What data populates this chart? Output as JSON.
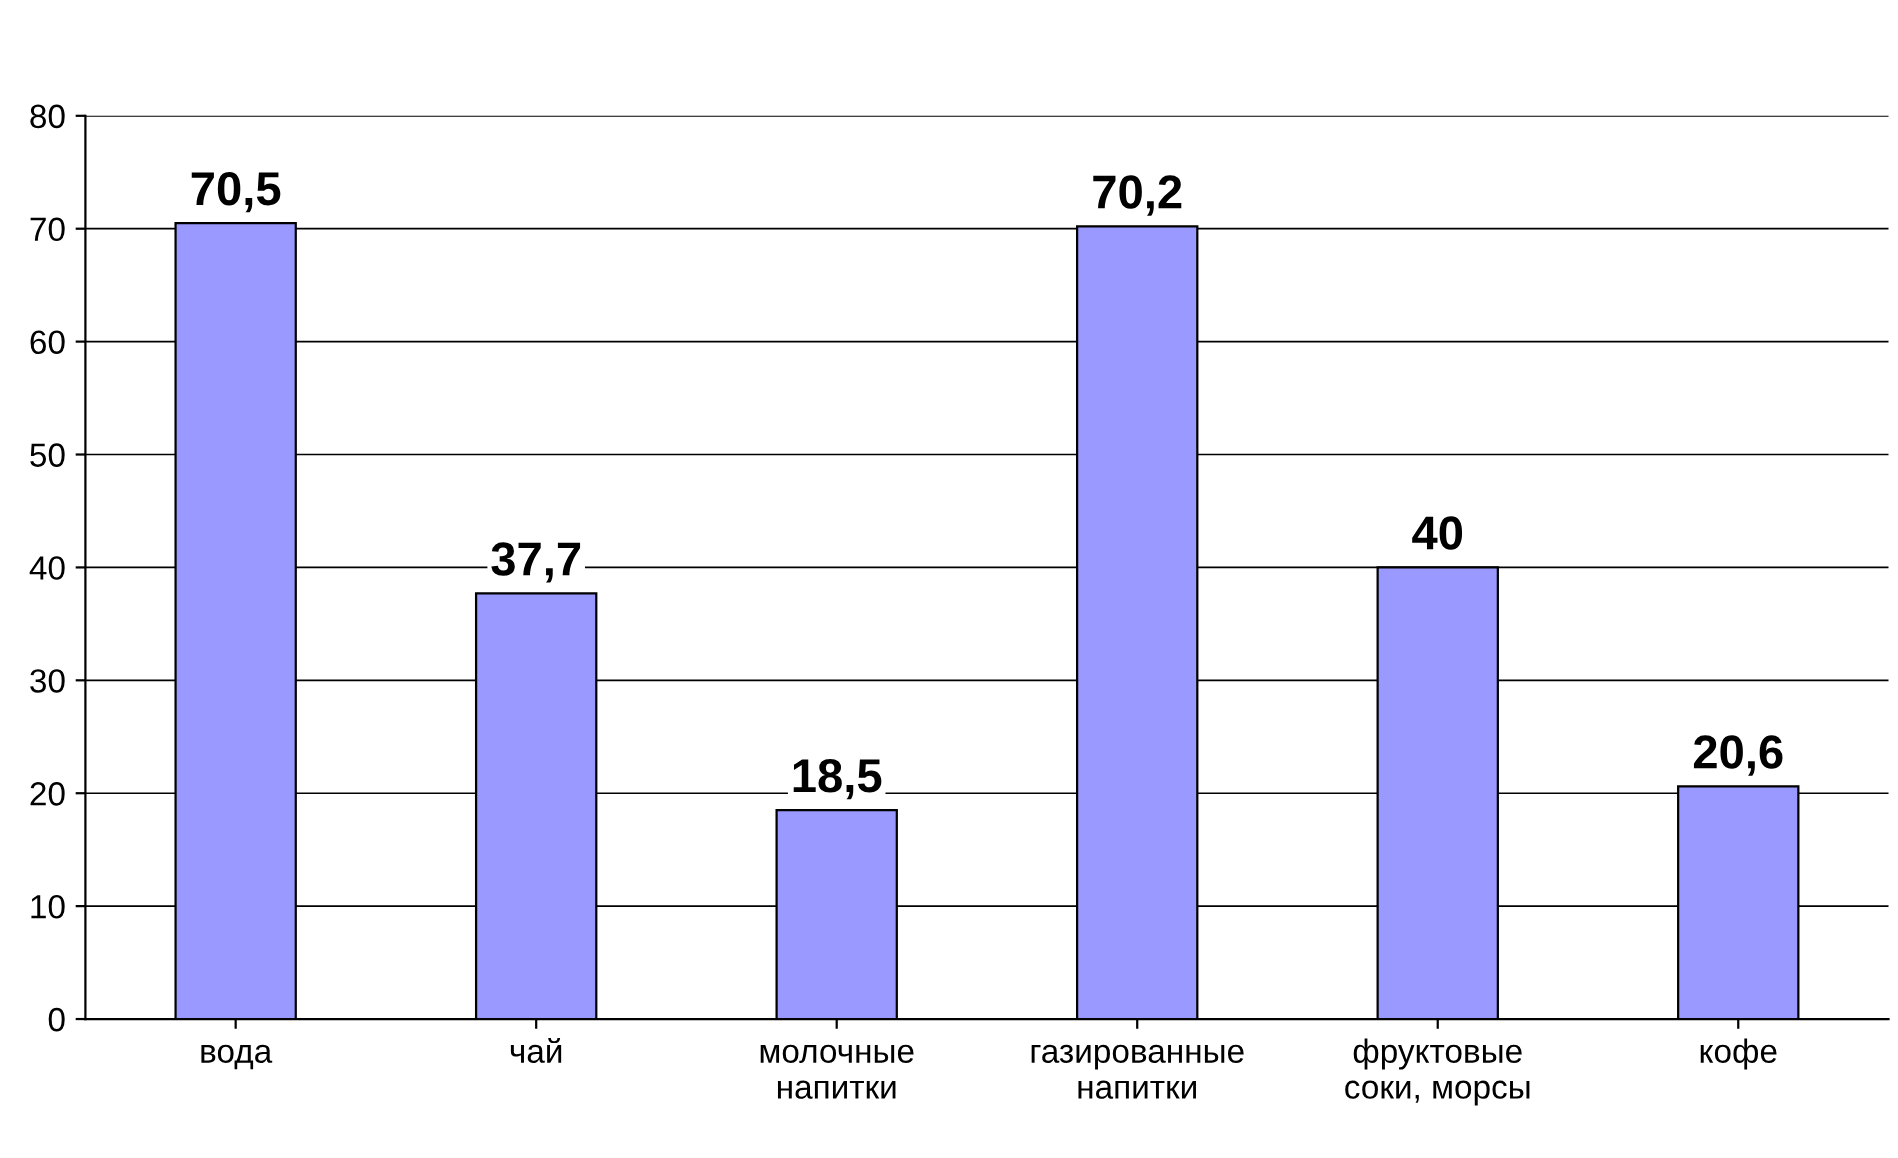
{
  "chart_data": {
    "type": "bar",
    "categories": [
      "вода",
      "чай",
      "молочные\nнапитки",
      "газированные\nнапитки",
      "фруктовые\nсоки, морсы",
      "кофе"
    ],
    "values": [
      70.5,
      37.7,
      18.5,
      70.2,
      40,
      20.6
    ],
    "value_labels": [
      "70,5",
      "37,7",
      "18,5",
      "70,2",
      "40",
      "20,6"
    ],
    "color": "#9999ff",
    "ylim": [
      0,
      80
    ],
    "yticks": [
      0,
      10,
      20,
      30,
      40,
      50,
      60,
      70,
      80
    ],
    "grid": "y",
    "legend": false
  }
}
